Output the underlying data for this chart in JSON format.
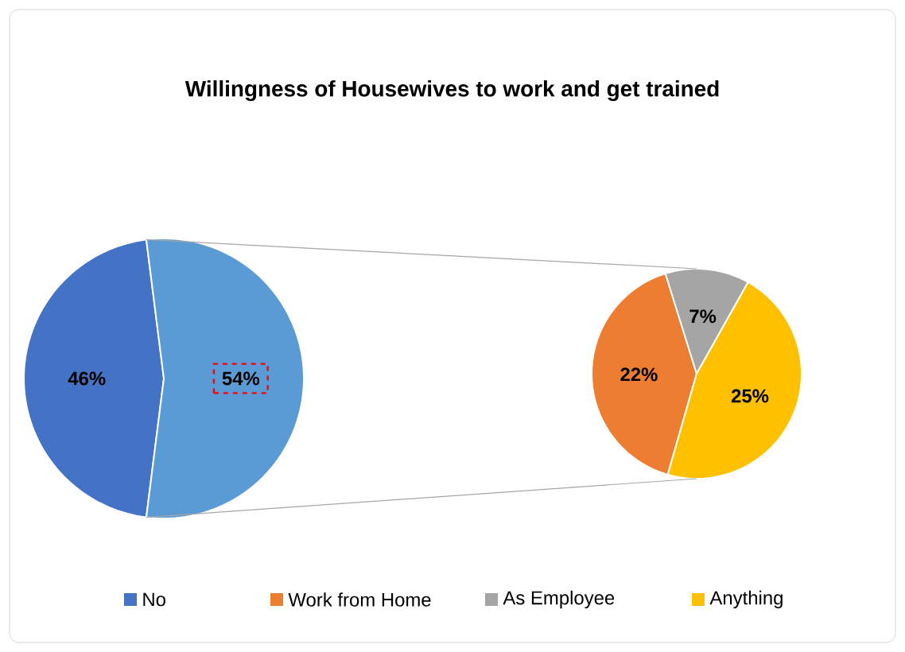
{
  "chart_data": [
    {
      "type": "pie",
      "title": "Willingness of Housewives to work and get trained",
      "categories": [
        "No",
        null
      ],
      "values": [
        46,
        54
      ],
      "value_labels": [
        "46%",
        "54%"
      ],
      "colors": [
        "#4472c4",
        "#5b9bd5"
      ],
      "legend": "bottom"
    },
    {
      "type": "pie",
      "categories": [
        "Work from Home",
        "As Employee",
        "Anything"
      ],
      "values": [
        22,
        7,
        25
      ],
      "value_labels": [
        "22%",
        "7%",
        "25%"
      ],
      "colors": [
        "#ed7d31",
        "#a5a5a5",
        "#ffc000"
      ],
      "legend": "bottom"
    }
  ]
}
